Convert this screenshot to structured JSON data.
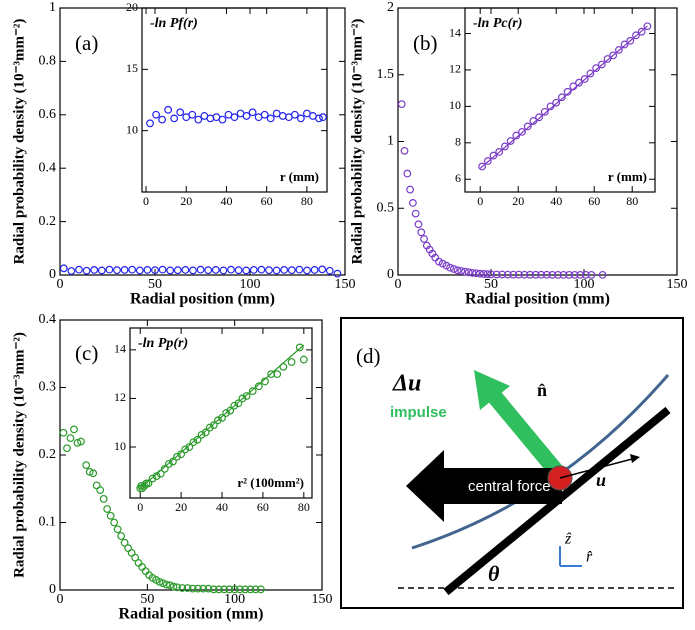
{
  "chart_data": [
    {
      "type": "scatter",
      "panel_label": "(a)",
      "xlabel": "Radial position (mm)",
      "ylabel": "Radial probability density (10⁻³mm⁻²)",
      "color": "#2323f0",
      "xlim": [
        0,
        150
      ],
      "ylim": [
        0,
        1
      ],
      "xticks": [
        0,
        50,
        100,
        150
      ],
      "yticks": [
        0,
        0.2,
        0.4,
        0.6,
        0.8,
        1
      ],
      "x": [
        2,
        6,
        10,
        14,
        18,
        22,
        26,
        30,
        34,
        38,
        42,
        46,
        50,
        54,
        58,
        62,
        66,
        70,
        74,
        78,
        82,
        86,
        90,
        94,
        98,
        102,
        106,
        110,
        114,
        118,
        122,
        126,
        130,
        134,
        138,
        142,
        146
      ],
      "values": [
        0.025,
        0.015,
        0.02,
        0.016,
        0.019,
        0.017,
        0.02,
        0.018,
        0.019,
        0.02,
        0.017,
        0.019,
        0.018,
        0.02,
        0.017,
        0.018,
        0.019,
        0.017,
        0.02,
        0.018,
        0.019,
        0.017,
        0.02,
        0.018,
        0.017,
        0.019,
        0.02,
        0.018,
        0.017,
        0.019,
        0.018,
        0.02,
        0.017,
        0.019,
        0.021,
        0.016,
        0.005
      ]
    },
    {
      "type": "scatter",
      "title": "-ln Pf(r)",
      "xlabel": "r (mm)",
      "color": "#2323f0",
      "xlim": [
        -2,
        90
      ],
      "ylim": [
        5,
        20
      ],
      "xticks": [
        0,
        20,
        40,
        60,
        80
      ],
      "yticks": [
        10,
        15,
        20
      ],
      "x": [
        2,
        5,
        8,
        11,
        14,
        17,
        20,
        23,
        26,
        29,
        32,
        35,
        38,
        41,
        44,
        47,
        50,
        53,
        56,
        59,
        62,
        65,
        68,
        71,
        74,
        77,
        80,
        83,
        86,
        88
      ],
      "values": [
        10.6,
        11.3,
        10.9,
        11.7,
        11.0,
        11.5,
        11.1,
        11.3,
        10.9,
        11.2,
        11.0,
        11.1,
        10.9,
        11.3,
        11.1,
        11.4,
        11.2,
        11.5,
        11.1,
        11.3,
        11.0,
        11.4,
        11.2,
        11.1,
        11.3,
        11.0,
        11.4,
        11.2,
        11.0,
        11.1
      ]
    },
    {
      "type": "scatter",
      "panel_label": "(b)",
      "xlabel": "Radial position (mm)",
      "ylabel": "Radial probability density (10⁻³mm⁻²)",
      "color": "#7a3cc8",
      "xlim": [
        0,
        150
      ],
      "ylim": [
        0,
        2
      ],
      "xticks": [
        0,
        50,
        100,
        150
      ],
      "yticks": [
        0,
        0.5,
        1,
        1.5,
        2
      ],
      "x": [
        2,
        3.5,
        5,
        6.5,
        8,
        9.5,
        11,
        12.5,
        14,
        15.5,
        17,
        18.5,
        20,
        22,
        24,
        26,
        28,
        30,
        32,
        34,
        36,
        38,
        40,
        42,
        44,
        46,
        48,
        50,
        53,
        56,
        59,
        62,
        65,
        68,
        71,
        74,
        77,
        80,
        83,
        86,
        89,
        92,
        95,
        98,
        101,
        104,
        110
      ],
      "values": [
        1.28,
        0.93,
        0.76,
        0.64,
        0.54,
        0.46,
        0.38,
        0.32,
        0.27,
        0.22,
        0.19,
        0.16,
        0.13,
        0.1,
        0.085,
        0.07,
        0.055,
        0.045,
        0.035,
        0.03,
        0.025,
        0.02,
        0.016,
        0.013,
        0.01,
        0.008,
        0.006,
        0.005,
        0.004,
        0.004,
        0.003,
        0.003,
        0.003,
        0.002,
        0.002,
        0.002,
        0.002,
        0.002,
        0.001,
        0.001,
        0.001,
        0.001,
        0.001,
        0.001,
        0.001,
        0.001,
        0.001
      ]
    },
    {
      "type": "scatter",
      "title": "-ln Pc(r)",
      "xlabel": "r (mm)",
      "color": "#7a3cc8",
      "xlim": [
        -8,
        92
      ],
      "ylim": [
        5.3,
        15.4
      ],
      "xticks": [
        0,
        20,
        40,
        60,
        80
      ],
      "yticks": [
        6,
        8,
        10,
        12,
        14
      ],
      "x": [
        1,
        4,
        7,
        10,
        13,
        16,
        19,
        22,
        25,
        28,
        31,
        34,
        37,
        40,
        43,
        46,
        49,
        52,
        55,
        58,
        61,
        64,
        67,
        70,
        73,
        76,
        79,
        82,
        85,
        88
      ],
      "values": [
        6.7,
        7.0,
        7.3,
        7.5,
        7.8,
        8.1,
        8.4,
        8.6,
        8.9,
        9.2,
        9.4,
        9.7,
        10.0,
        10.2,
        10.5,
        10.8,
        11.1,
        11.3,
        11.5,
        11.8,
        12.1,
        12.3,
        12.6,
        12.8,
        13.1,
        13.4,
        13.6,
        13.9,
        14.1,
        14.4
      ],
      "fit": {
        "x": [
          0,
          88
        ],
        "values": [
          6.6,
          14.4
        ]
      }
    },
    {
      "type": "scatter",
      "panel_label": "(c)",
      "xlabel": "Radial position (mm)",
      "ylabel": "Radial probability density (10⁻³mm⁻²)",
      "color": "#2a9a2a",
      "xlim": [
        0,
        150
      ],
      "ylim": [
        0,
        0.4
      ],
      "xticks": [
        0,
        50,
        100,
        150
      ],
      "yticks": [
        0,
        0.1,
        0.2,
        0.3,
        0.4
      ],
      "x": [
        2,
        4,
        6,
        8,
        10,
        12,
        15,
        17,
        19,
        21,
        23,
        25,
        27,
        29,
        31,
        33,
        35,
        37,
        39,
        41,
        43,
        45,
        47,
        49,
        51,
        53,
        55,
        57,
        59,
        61,
        63,
        65,
        67,
        70,
        73,
        76,
        79,
        82,
        85,
        88,
        91,
        94,
        97,
        100,
        103,
        106,
        109,
        112,
        115
      ],
      "values": [
        0.233,
        0.21,
        0.225,
        0.238,
        0.218,
        0.22,
        0.185,
        0.175,
        0.173,
        0.155,
        0.148,
        0.135,
        0.12,
        0.11,
        0.1,
        0.09,
        0.08,
        0.07,
        0.062,
        0.055,
        0.048,
        0.04,
        0.034,
        0.028,
        0.022,
        0.018,
        0.015,
        0.012,
        0.01,
        0.008,
        0.007,
        0.005,
        0.004,
        0.003,
        0.003,
        0.002,
        0.002,
        0.002,
        0.002,
        0.001,
        0.001,
        0.001,
        0.001,
        0.001,
        0.001,
        0.001,
        0.001,
        0.001,
        0.001
      ]
    },
    {
      "type": "scatter",
      "title": "-ln Pp(r)",
      "xlabel": "r² (100mm²)",
      "color": "#2a9a2a",
      "xlim": [
        -5,
        84
      ],
      "ylim": [
        7.9,
        14.9
      ],
      "xticks": [
        0,
        20,
        40,
        60,
        80
      ],
      "yticks": [
        10,
        12,
        14
      ],
      "x": [
        0,
        0.5,
        1,
        2,
        3,
        4,
        6,
        8,
        10,
        12,
        14,
        16,
        18,
        20,
        22,
        24,
        26,
        28,
        30,
        32,
        34,
        36,
        38,
        40,
        42,
        44,
        46,
        48,
        50,
        52,
        55,
        58,
        61,
        64,
        67,
        70,
        74,
        78,
        80
      ],
      "values": [
        8.3,
        8.4,
        8.3,
        8.4,
        8.5,
        8.5,
        8.7,
        8.8,
        8.9,
        9.1,
        9.3,
        9.4,
        9.6,
        9.7,
        9.9,
        10.0,
        10.2,
        10.3,
        10.5,
        10.6,
        10.8,
        10.9,
        11.1,
        11.2,
        11.4,
        11.5,
        11.7,
        11.8,
        12.0,
        12.1,
        12.3,
        12.5,
        12.7,
        13.0,
        13.0,
        13.3,
        13.5,
        14.1,
        13.6
      ],
      "fit": {
        "x": [
          0,
          80
        ],
        "values": [
          8.3,
          14.2
        ]
      }
    }
  ],
  "diagram": {
    "label": "(d)",
    "delta_u": "Δu⃗",
    "impulse": "impulse",
    "n_hat": "n̂",
    "central_force": "central force",
    "u_vec": "u⃗",
    "z_hat": "ẑ",
    "r_hat": "r̂",
    "theta": "θ"
  }
}
